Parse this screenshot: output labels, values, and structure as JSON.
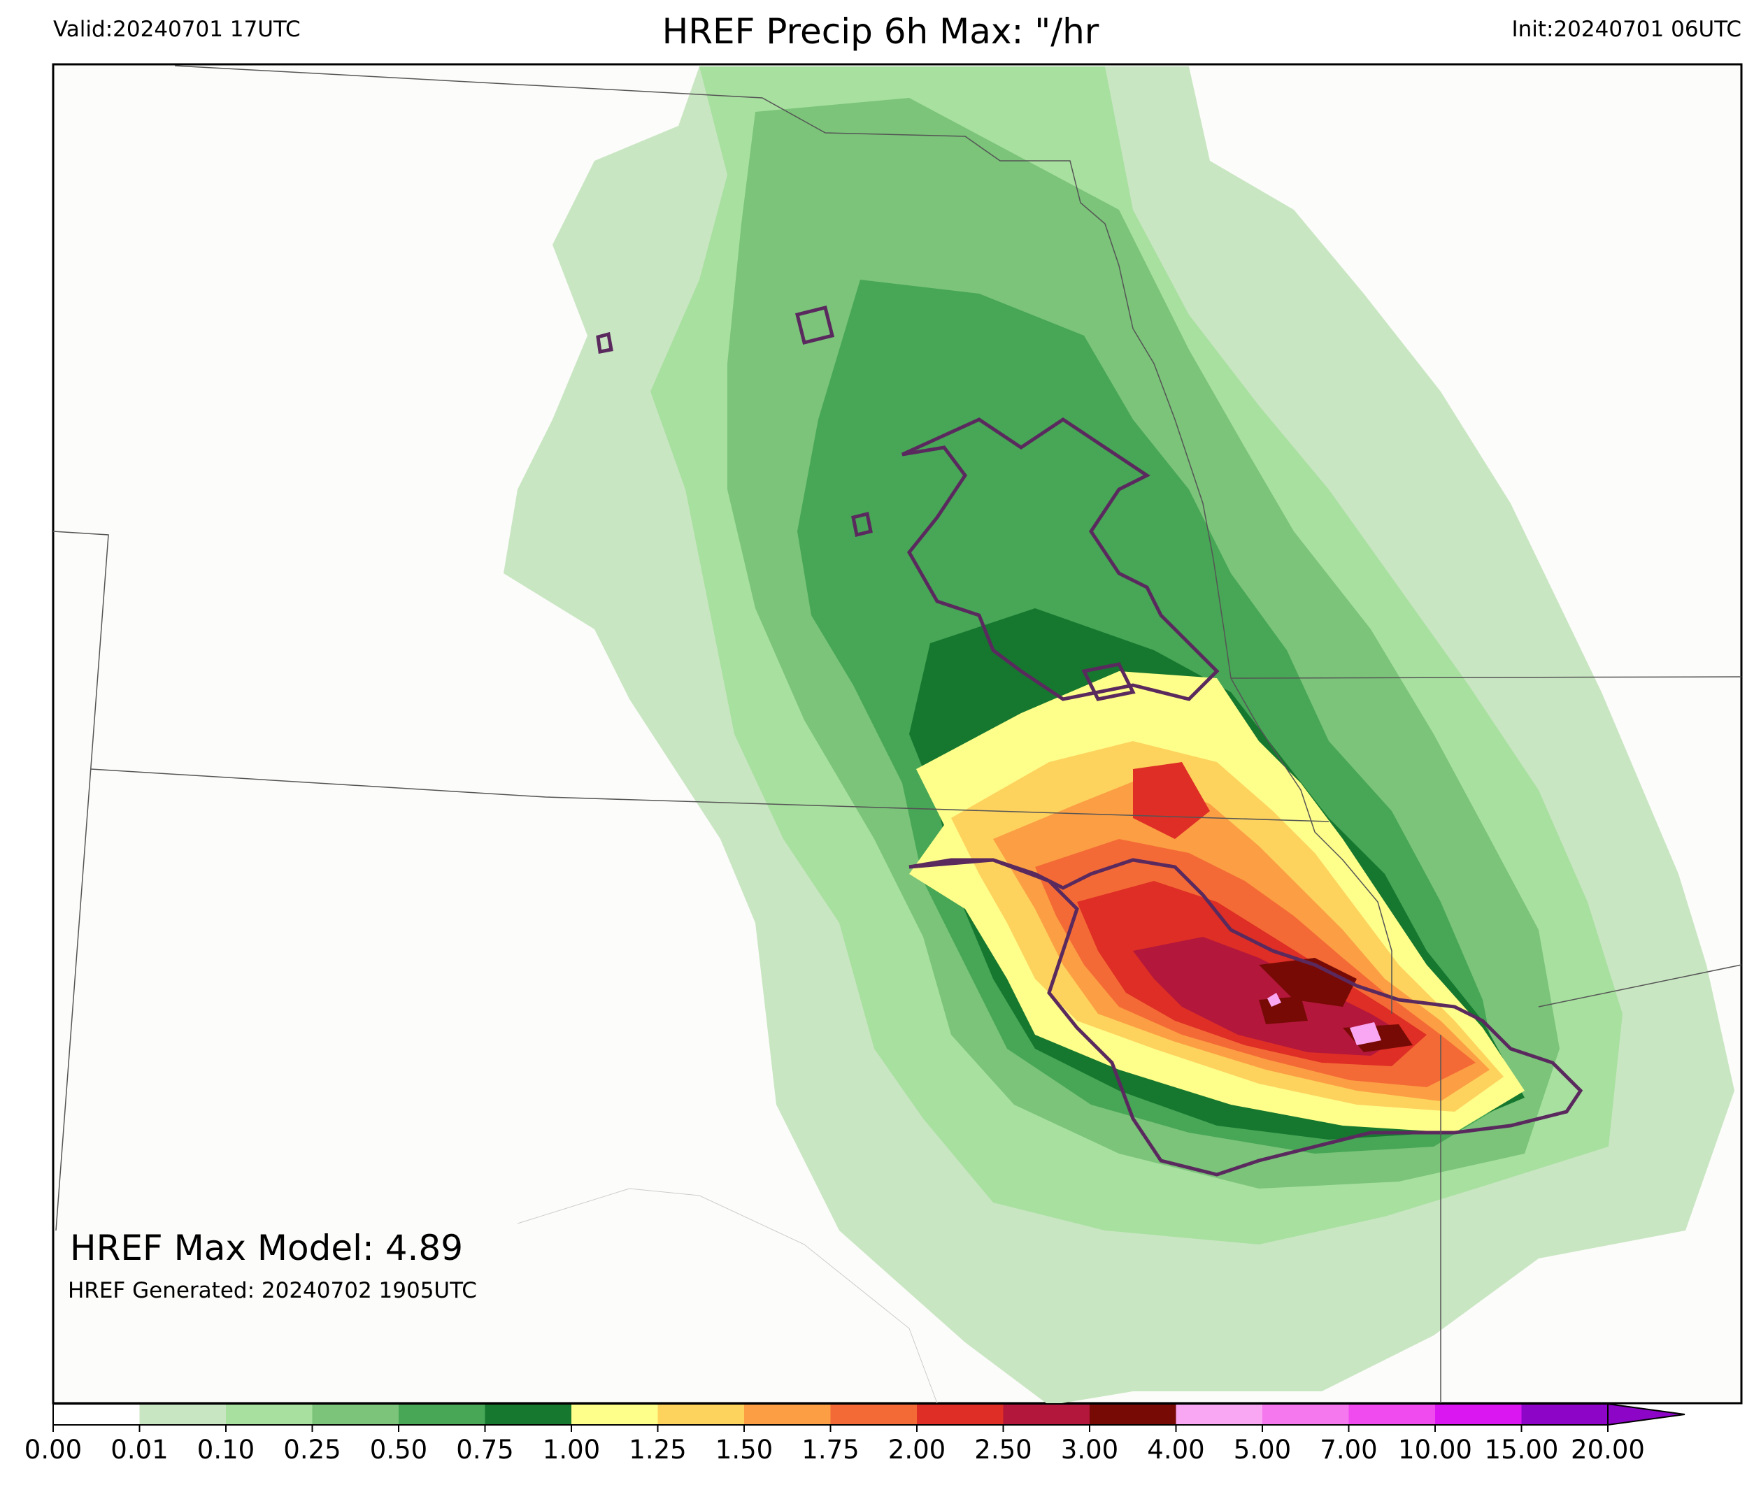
{
  "header": {
    "valid": "Valid:20240701 17UTC",
    "title": "HREF Precip 6h Max: \"/hr",
    "init": "Init:20240701 06UTC"
  },
  "annotation": {
    "max_model": "HREF Max Model: 4.89",
    "generated": "HREF Generated: 20240702 1905UTC"
  },
  "colorbar": {
    "levels": [
      "0.00",
      "0.01",
      "0.10",
      "0.25",
      "0.50",
      "0.75",
      "1.00",
      "1.25",
      "1.50",
      "1.75",
      "2.00",
      "2.50",
      "3.00",
      "4.00",
      "5.00",
      "7.00",
      "10.00",
      "15.00",
      "20.00"
    ],
    "colors": [
      "#ffffff",
      "#c9e6c2",
      "#a8e0a0",
      "#7bc47a",
      "#47a756",
      "#16772f",
      "#fefe8a",
      "#fdd25d",
      "#fc9e44",
      "#f46a36",
      "#de2e25",
      "#b4173c",
      "#780a06",
      "#f9a6f3",
      "#f578ee",
      "#f04bee",
      "#da16f1",
      "#8d05c7"
    ],
    "extend_color": "#8d05c7"
  },
  "colors": {
    "background": "#fcfcfa",
    "contour": "#5a2a5e",
    "boundaries": "#555555"
  },
  "regions": [
    "precipitation-swath",
    "max-model-contour",
    "state-boundaries"
  ]
}
